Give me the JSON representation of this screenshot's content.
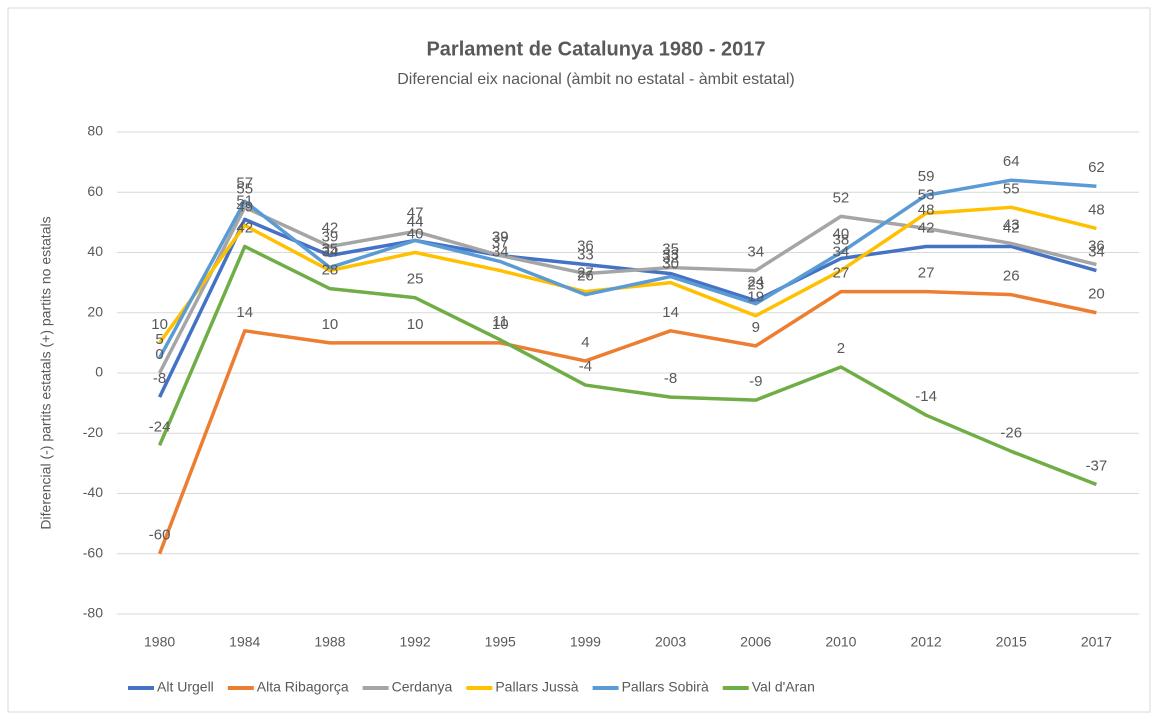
{
  "chart_data": {
    "type": "line",
    "title": "Parlament de Catalunya 1980 - 2017",
    "subtitle": "Diferencial eix nacional (àmbit no estatal - àmbit estatal)",
    "y_label": "Diferencial (-) partits estatals (+) partits no estatals",
    "categories": [
      "1980",
      "1984",
      "1988",
      "1992",
      "1995",
      "1999",
      "2003",
      "2006",
      "2010",
      "2012",
      "2015",
      "2017"
    ],
    "ylim": [
      -80,
      80
    ],
    "yticks": [
      -80,
      -60,
      -40,
      -20,
      0,
      20,
      40,
      60,
      80
    ],
    "grid": true,
    "legend": "bottom",
    "series": [
      {
        "name": "Alt Urgell",
        "color": "#4472c4",
        "values": [
          -8,
          51,
          39,
          44,
          39,
          36,
          33,
          24,
          38,
          42,
          42,
          34
        ]
      },
      {
        "name": "Alta Ribagorça",
        "color": "#ed7d31",
        "values": [
          -60,
          14,
          10,
          10,
          10,
          4,
          14,
          9,
          27,
          27,
          26,
          20
        ]
      },
      {
        "name": "Cerdanya",
        "color": "#a5a5a5",
        "values": [
          0,
          55,
          42,
          47,
          39,
          33,
          35,
          34,
          52,
          48,
          43,
          36
        ]
      },
      {
        "name": "Pallars Jussà",
        "color": "#ffc000",
        "values": [
          10,
          49,
          34,
          40,
          34,
          27,
          30,
          19,
          34,
          53,
          55,
          48
        ]
      },
      {
        "name": "Pallars Sobirà",
        "color": "#5b9bd5",
        "values": [
          5,
          57,
          35,
          44,
          37,
          26,
          32,
          23,
          40,
          59,
          64,
          62
        ]
      },
      {
        "name": "Val d'Aran",
        "color": "#70ad47",
        "values": [
          -24,
          42,
          28,
          25,
          11,
          -4,
          -8,
          -9,
          2,
          -14,
          -26,
          -37
        ]
      }
    ]
  }
}
